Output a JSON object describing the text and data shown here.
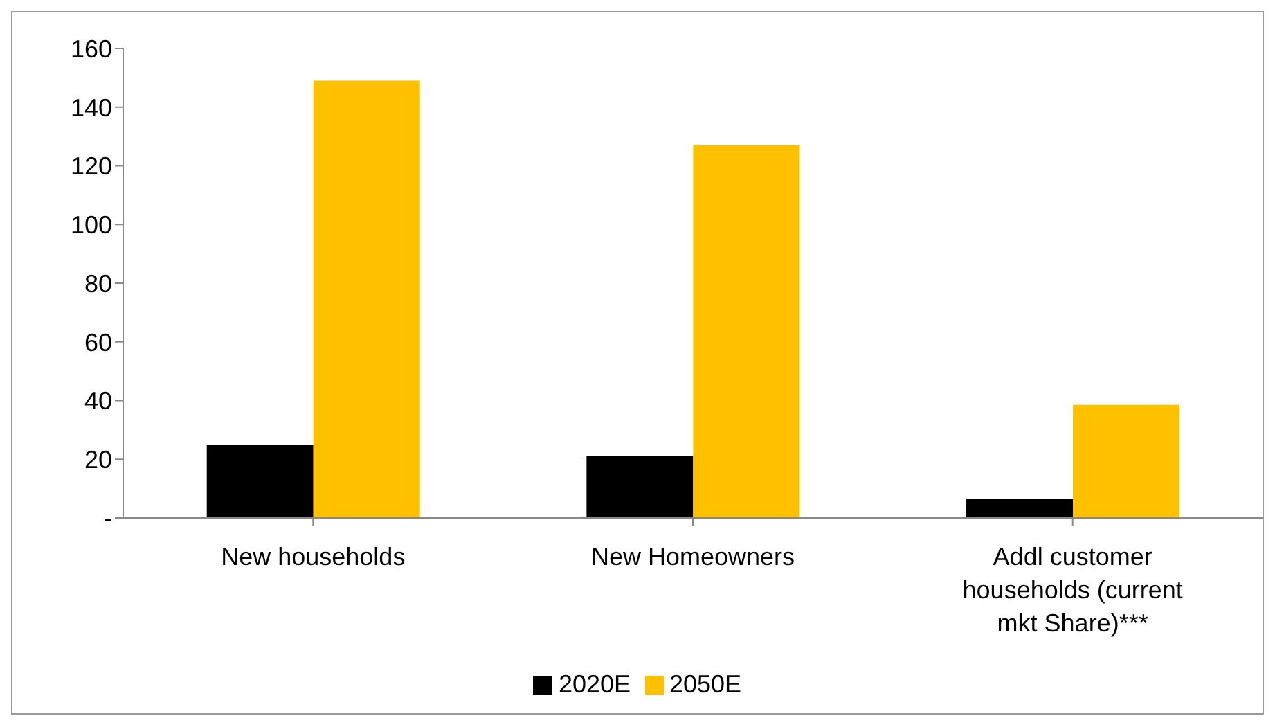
{
  "chart_data": {
    "type": "bar",
    "categories": [
      "New households",
      "New Homeowners",
      "Addl customer households (current mkt Share)***"
    ],
    "series": [
      {
        "name": "2020E",
        "color": "#000000",
        "values": [
          25,
          21,
          6.5
        ]
      },
      {
        "name": "2050E",
        "color": "#ffc000",
        "values": [
          149,
          127,
          38.5
        ]
      }
    ],
    "ylim": [
      0,
      160
    ],
    "yticks": [
      {
        "value": 0,
        "label": "-"
      },
      20,
      40,
      60,
      80,
      100,
      120,
      140,
      160
    ],
    "legend": "bottom"
  }
}
